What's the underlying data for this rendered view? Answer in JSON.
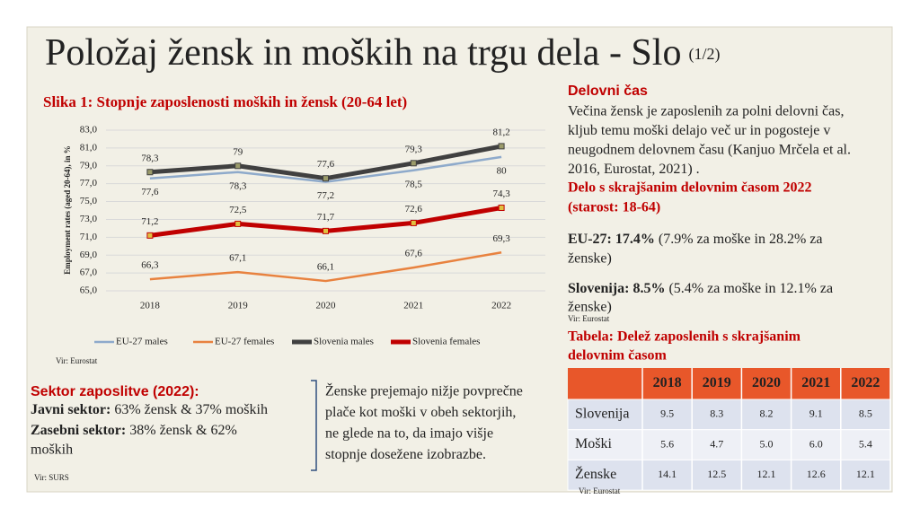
{
  "header": {
    "title": "Položaj žensk in moških na trgu dela - Slo",
    "page": "(1/2)"
  },
  "chart_data": {
    "type": "line",
    "title": "Slika 1: Stopnje zaposlenosti moških in žensk (20-64 let)",
    "y_label": "Employment rates (aged 20-64), in %",
    "categories": [
      "2018",
      "2019",
      "2020",
      "2021",
      "2022"
    ],
    "series": [
      {
        "name": "EU-27 males",
        "color": "#8eaacb",
        "values": [
          77.6,
          78.3,
          77.2,
          78.5,
          80
        ],
        "value_labels": [
          "77,6",
          "78,3",
          "77,2",
          "78,5",
          "80"
        ]
      },
      {
        "name": "EU-27 females",
        "color": "#e8823f",
        "values": [
          66.3,
          67.1,
          66.1,
          67.6,
          69.3
        ],
        "value_labels": [
          "66,3",
          "67,1",
          "66,1",
          "67,6",
          "69,3"
        ]
      },
      {
        "name": "Slovenia males",
        "color": "#404040",
        "values": [
          78.3,
          79,
          77.6,
          79.3,
          81.2
        ],
        "value_labels": [
          "78,3",
          "79",
          "77,6",
          "79,3",
          "81,2"
        ]
      },
      {
        "name": "Slovenia females",
        "color": "#c00000",
        "values": [
          71.2,
          72.5,
          71.7,
          72.6,
          74.3
        ],
        "value_labels": [
          "71,2",
          "72,5",
          "71,7",
          "72,6",
          "74,3"
        ]
      }
    ],
    "ylim": [
      65,
      83
    ],
    "yticks": [
      {
        "value": 65,
        "label": "65,0"
      },
      {
        "value": 67,
        "label": "67,0"
      },
      {
        "value": 69,
        "label": "69,0"
      },
      {
        "value": 71,
        "label": "71,0"
      },
      {
        "value": 73,
        "label": "73,0"
      },
      {
        "value": 75,
        "label": "75,0"
      },
      {
        "value": 77,
        "label": "77,0"
      },
      {
        "value": 79,
        "label": "79,0"
      },
      {
        "value": 81,
        "label": "81,0"
      },
      {
        "value": 83,
        "label": "83,0"
      }
    ],
    "grid": true,
    "source": "Vir: Eurostat"
  },
  "sector": {
    "title": "Sektor zaposlitve (2022):",
    "public_label": "Javni sektor:",
    "public_text": " 63% žensk & 37% moških",
    "private_label": "Zasebni sektor:",
    "private_text": " 38% žensk & 62%",
    "private_text_2": "moških",
    "source": "Vir: SURS",
    "note": [
      "Ženske prejemajo nižje povprečne",
      "plače kot moški v obeh sektorjih,",
      "ne glede na to, da imajo višje",
      "stopnje dosežene izobrazbe."
    ]
  },
  "worktime": {
    "title": "Delovni čas",
    "text": [
      "Večina žensk je zaposlenih za polni delovni čas,",
      "kljub temu moški delajo več ur in pogosteje v",
      "neugodnem delovnem času (Kanjuo Mrčela et al.",
      "2016, Eurostat, 2021) ."
    ]
  },
  "parttime": {
    "title": [
      "Delo s skrajšanim delovnim časom 2022",
      "(starost: 18-64)"
    ],
    "eu_label": "EU-27: 17.4%",
    "eu_text": " (7.9% za moške in 28.2% za",
    "eu_text_2": "ženske)",
    "si_label": "Slovenija: 8.5%",
    "si_text": " (5.4% za moške in 12.1% za",
    "si_text_2": "ženske)",
    "source": "Vir: Eurostat"
  },
  "table": {
    "title": [
      "Tabela: Delež zaposlenih s skrajšanim",
      "delovnim časom"
    ],
    "columns": [
      "2018",
      "2019",
      "2020",
      "2021",
      "2022"
    ],
    "rows": [
      {
        "label": "Slovenija",
        "cells": [
          "9.5",
          "8.3",
          "8.2",
          "9.1",
          "8.5"
        ]
      },
      {
        "label": "Moški",
        "cells": [
          "5.6",
          "4.7",
          "5.0",
          "6.0",
          "5.4"
        ]
      },
      {
        "label": "Ženske",
        "cells": [
          "14.1",
          "12.5",
          "12.1",
          "12.6",
          "12.1"
        ]
      }
    ],
    "source": "Vir: Eurostat"
  }
}
